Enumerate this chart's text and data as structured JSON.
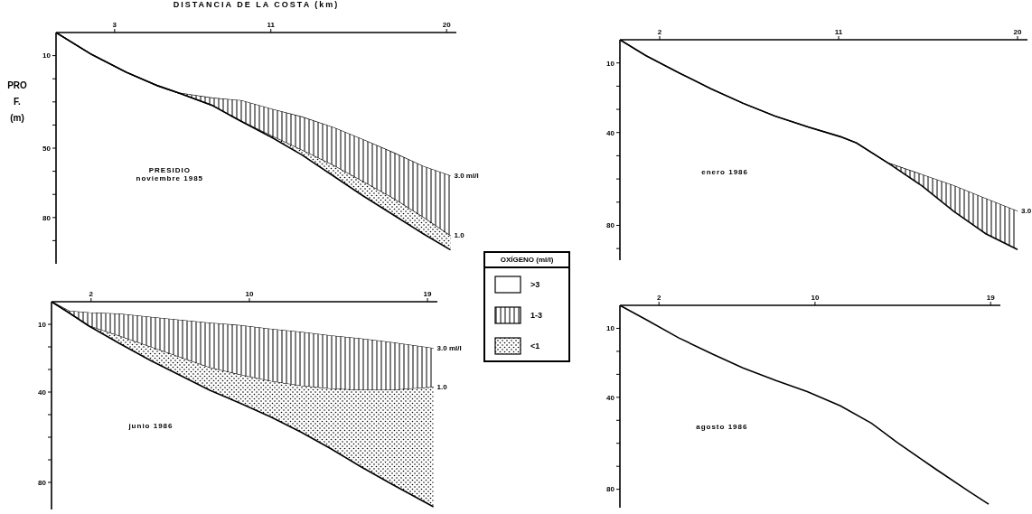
{
  "chart_data": [
    {
      "type": "area",
      "stacked": true,
      "title": "PRESIDIO",
      "subtitle": "noviembre 1985",
      "xlabel": "DISTANCIA DE LA COSTA (km)",
      "ylabel": "PROF. (m)",
      "legend": "right",
      "legend_title": "OXÍGENO (ml/l)",
      "x": [
        0,
        1.8,
        3.6,
        5.2,
        6.3,
        8.0,
        9.5,
        11.1,
        12.6,
        14.2,
        15.7,
        17.3,
        18.8,
        20.2
      ],
      "xlim": [
        0,
        20.5
      ],
      "xticks": [
        3,
        11,
        20
      ],
      "ylim": [
        100,
        0
      ],
      "yticks": [
        10,
        {
          "value": 20,
          "label": null
        },
        {
          "value": 30,
          "label": null
        },
        {
          "value": 40,
          "label": null
        },
        50,
        {
          "value": 60,
          "label": null
        },
        {
          "value": 70,
          "label": null
        },
        80,
        {
          "value": 90,
          "label": null
        }
      ],
      "annotations": [
        {
          "text": "3.0 ml/l",
          "x": 20.2,
          "y": 62
        },
        {
          "text": "1.0",
          "x": 20.2,
          "y": 88
        }
      ],
      "series": [
        {
          "name": ">3",
          "color": "#ffffff",
          "values": [
            0,
            9.4,
            17.2,
            23,
            26.2,
            28.4,
            29.5,
            33.3,
            36.6,
            41.1,
            46.3,
            52.1,
            57.9,
            62
          ]
        },
        {
          "name": "1-3",
          "color": "#000000",
          "values": [
            0,
            0,
            0,
            0,
            0,
            3.1,
            9,
            11.7,
            14.4,
            16.4,
            18.2,
            19.9,
            22.1,
            26
          ]
        },
        {
          "name": "<1",
          "color": "#000000",
          "values": [
            0,
            0,
            0,
            0,
            0,
            0,
            0,
            0.6,
            2,
            4.5,
            6,
            7,
            7,
            6
          ]
        }
      ]
    },
    {
      "type": "area",
      "stacked": true,
      "title": "enero 1986",
      "x": [
        0,
        1.3,
        3.0,
        4.6,
        6.2,
        7.8,
        9.5,
        11.1,
        11.9,
        13.5,
        15.2,
        16.8,
        18.4,
        20
      ],
      "xlim": [
        0,
        20.5
      ],
      "xticks": [
        2,
        11,
        20
      ],
      "ylim": [
        95,
        0
      ],
      "yticks": [
        10,
        {
          "value": 20,
          "label": null
        },
        {
          "value": 30,
          "label": null
        },
        40,
        {
          "value": 50,
          "label": null
        },
        {
          "value": 60,
          "label": null
        },
        {
          "value": 70,
          "label": null
        },
        80,
        {
          "value": 90,
          "label": null
        }
      ],
      "annotations": [
        {
          "text": "3.0",
          "x": 20,
          "y": 74
        }
      ],
      "series": [
        {
          "color": "#ffffff",
          "values": [
            0,
            6.8,
            14.4,
            21.2,
            27.4,
            32.9,
            37.7,
            41.8,
            44.5,
            53.2,
            58.2,
            63,
            68.5,
            74
          ]
        },
        {
          "color": "#000000",
          "values": [
            0,
            0,
            0,
            0,
            0,
            0,
            0,
            0,
            0,
            0,
            4.8,
            11,
            15.1,
            16.4
          ]
        }
      ]
    },
    {
      "type": "area",
      "stacked": true,
      "title": "junio 1986",
      "x": [
        0,
        0.9,
        1.9,
        3.5,
        5.0,
        6.5,
        8.0,
        9.6,
        11.1,
        12.6,
        14.1,
        15.6,
        17.2,
        19.3
      ],
      "xlim": [
        0,
        19.5
      ],
      "xticks": [
        2,
        10,
        19
      ],
      "ylim": [
        92,
        0
      ],
      "yticks": [
        10,
        {
          "value": 20,
          "label": null
        },
        {
          "value": 30,
          "label": null
        },
        40,
        {
          "value": 50,
          "label": null
        },
        {
          "value": 60,
          "label": null
        },
        {
          "value": 70,
          "label": null
        },
        80
      ],
      "annotations": [
        {
          "text": "3.0 ml/l",
          "x": 19.3,
          "y": 20.7
        },
        {
          "text": "1.0",
          "x": 19.3,
          "y": 37.9
        }
      ],
      "series": [
        {
          "color": "#ffffff",
          "values": [
            0,
            4.2,
            4.9,
            5.5,
            6.9,
            8.2,
            9.5,
            10.6,
            12.2,
            13.5,
            15.1,
            16.4,
            18.1,
            20.7
          ]
        },
        {
          "color": "#000000",
          "values": [
            0,
            0.8,
            5.9,
            10,
            13.2,
            16.5,
            19.8,
            22,
            23.1,
            23.8,
            23.5,
            22.8,
            21.1,
            17.2
          ]
        },
        {
          "color": "#000000",
          "values": [
            0,
            0,
            0,
            3.3,
            5.9,
            7.9,
            9.9,
            12.6,
            15.8,
            20.4,
            26.4,
            33.7,
            41.6,
            52.9
          ]
        }
      ]
    },
    {
      "type": "area",
      "stacked": true,
      "title": "agosto 1986",
      "x": [
        0,
        1.4,
        3.0,
        4.7,
        6.3,
        8.0,
        9.6,
        11.3,
        12.9,
        14.2,
        16.2,
        17.9,
        18.9
      ],
      "xlim": [
        0,
        19.5
      ],
      "xticks": [
        2,
        10,
        19
      ],
      "ylim": [
        88,
        0
      ],
      "yticks": [
        10,
        {
          "value": 20,
          "label": null
        },
        {
          "value": 30,
          "label": null
        },
        40,
        {
          "value": 50,
          "label": null
        },
        {
          "value": 60,
          "label": null
        },
        {
          "value": 70,
          "label": null
        },
        80
      ],
      "series": [
        {
          "color": "#ffffff",
          "values": [
            0,
            6.5,
            14.1,
            21,
            27.2,
            32.7,
            37.5,
            43.7,
            51.3,
            59.6,
            71.3,
            81,
            86.5
          ]
        }
      ]
    }
  ]
}
